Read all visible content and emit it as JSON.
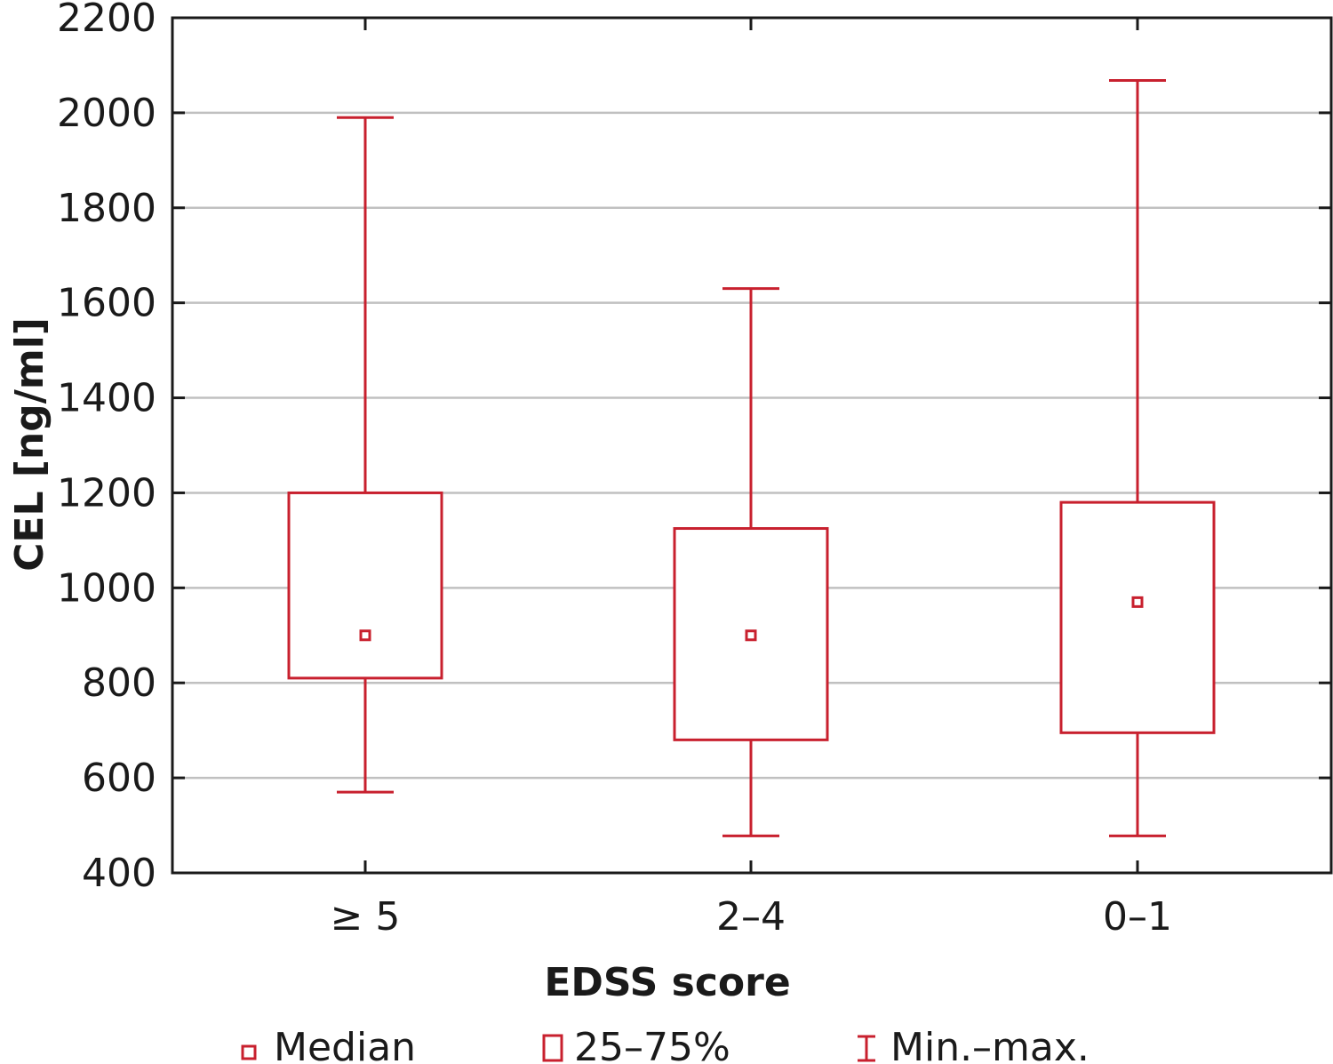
{
  "chart_data": {
    "type": "box",
    "xlabel": "EDSS score",
    "ylabel": "CEL [ng/ml]",
    "ylim": [
      400,
      2200
    ],
    "yticks": [
      400,
      600,
      800,
      1000,
      1200,
      1400,
      1600,
      1800,
      2000,
      2200
    ],
    "grid": true,
    "categories": [
      "≥ 5",
      "2–4",
      "0–1"
    ],
    "boxes": [
      {
        "category": "≥ 5",
        "min": 570,
        "q1": 810,
        "median": 900,
        "q3": 1200,
        "max": 1990
      },
      {
        "category": "2–4",
        "min": 478,
        "q1": 680,
        "median": 900,
        "q3": 1125,
        "max": 1630
      },
      {
        "category": "0–1",
        "min": 478,
        "q1": 695,
        "median": 970,
        "q3": 1180,
        "max": 2068
      }
    ],
    "legend": {
      "position": "bottom",
      "items": [
        {
          "label": "Median",
          "symbol": "small-square"
        },
        {
          "label": "25–75%",
          "symbol": "box"
        },
        {
          "label": "Min.–max.",
          "symbol": "whisker"
        }
      ]
    },
    "colors": {
      "series": "#c8202e",
      "grid": "#c0c0c0",
      "axis": "#1a1a1a"
    }
  }
}
